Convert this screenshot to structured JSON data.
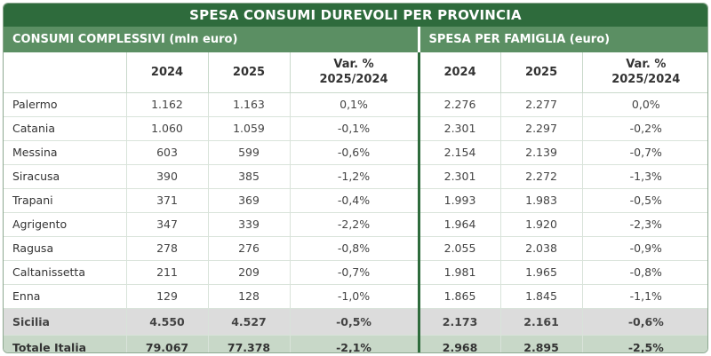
{
  "title": "SPESA CONSUMI DUREVOLI PER PROVINCIA",
  "groups": {
    "left": "CONSUMI COMPLESSIVI (mln euro)",
    "right": "SPESA PER FAMIGLIA (euro)"
  },
  "headers": {
    "y2024": "2024",
    "y2025": "2025",
    "var_line1": "Var. %",
    "var_line2": "2025/2024"
  },
  "rows": [
    {
      "name": "Palermo",
      "c24": "1.162",
      "c25": "1.163",
      "cv": "0,1%",
      "f24": "2.276",
      "f25": "2.277",
      "fv": "0,0%"
    },
    {
      "name": "Catania",
      "c24": "1.060",
      "c25": "1.059",
      "cv": "-0,1%",
      "f24": "2.301",
      "f25": "2.297",
      "fv": "-0,2%"
    },
    {
      "name": "Messina",
      "c24": "603",
      "c25": "599",
      "cv": "-0,6%",
      "f24": "2.154",
      "f25": "2.139",
      "fv": "-0,7%"
    },
    {
      "name": "Siracusa",
      "c24": "390",
      "c25": "385",
      "cv": "-1,2%",
      "f24": "2.301",
      "f25": "2.272",
      "fv": "-1,3%"
    },
    {
      "name": "Trapani",
      "c24": "371",
      "c25": "369",
      "cv": "-0,4%",
      "f24": "1.993",
      "f25": "1.983",
      "fv": "-0,5%"
    },
    {
      "name": "Agrigento",
      "c24": "347",
      "c25": "339",
      "cv": "-2,2%",
      "f24": "1.964",
      "f25": "1.920",
      "fv": "-2,3%"
    },
    {
      "name": "Ragusa",
      "c24": "278",
      "c25": "276",
      "cv": "-0,8%",
      "f24": "2.055",
      "f25": "2.038",
      "fv": "-0,9%"
    },
    {
      "name": "Caltanissetta",
      "c24": "211",
      "c25": "209",
      "cv": "-0,7%",
      "f24": "1.981",
      "f25": "1.965",
      "fv": "-0,8%"
    },
    {
      "name": "Enna",
      "c24": "129",
      "c25": "128",
      "cv": "-1,0%",
      "f24": "1.865",
      "f25": "1.845",
      "fv": "-1,1%"
    }
  ],
  "totals": [
    {
      "name": "Sicilia",
      "c24": "4.550",
      "c25": "4.527",
      "cv": "-0,5%",
      "f24": "2.173",
      "f25": "2.161",
      "fv": "-0,6%"
    },
    {
      "name": "Totale Italia",
      "c24": "79.067",
      "c25": "77.378",
      "cv": "-2,1%",
      "f24": "2.968",
      "f25": "2.895",
      "fv": "-2,5%"
    }
  ],
  "colors": {
    "title_bg": "#2e6b3c",
    "group_bg": "#5b8f63",
    "sicilia_bg": "#dcdcdc",
    "italia_bg": "#c8d8c8"
  }
}
